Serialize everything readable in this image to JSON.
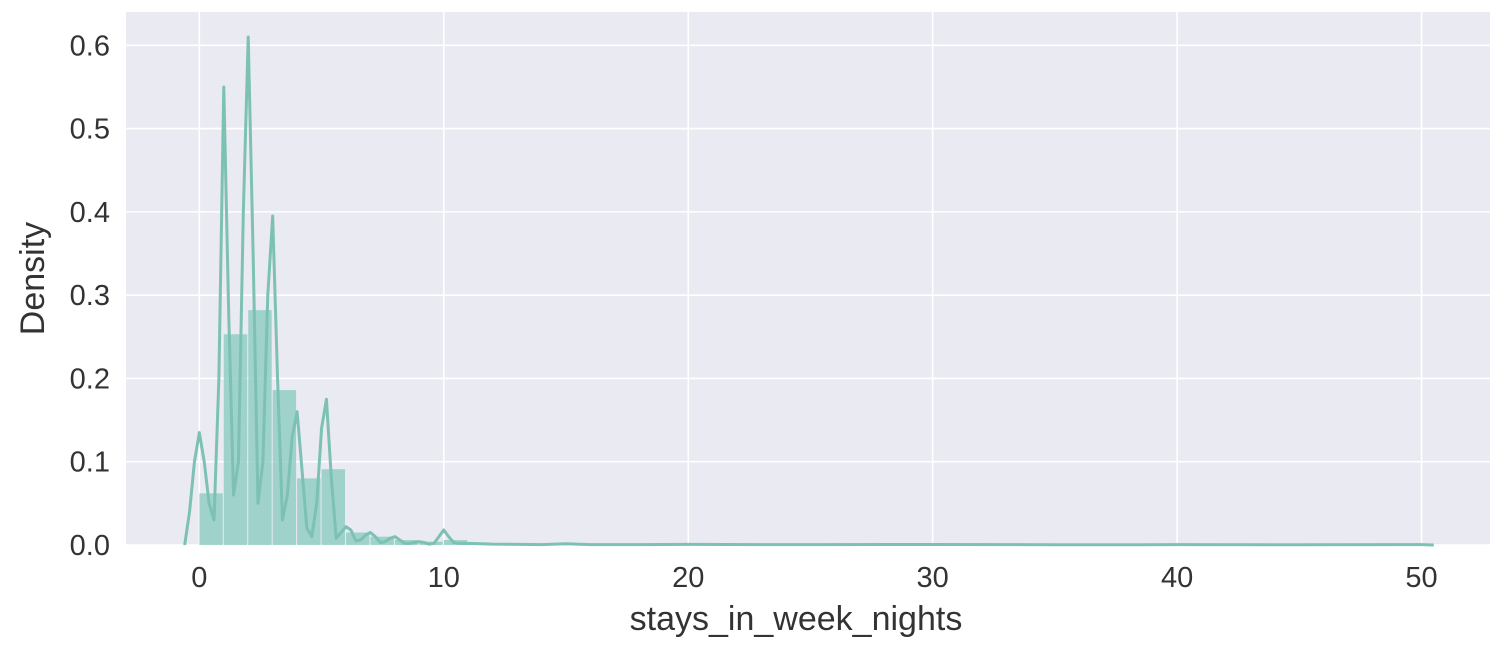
{
  "chart_data": {
    "type": "bar",
    "title": "",
    "xlabel": "stays_in_week_nights",
    "ylabel": "Density",
    "xlim": [
      -3.0,
      52.8
    ],
    "ylim": [
      0.0,
      0.64
    ],
    "x_ticks": [
      0,
      10,
      20,
      30,
      40,
      50
    ],
    "x_tick_labels": [
      "0",
      "10",
      "20",
      "30",
      "40",
      "50"
    ],
    "y_ticks": [
      0.0,
      0.1,
      0.2,
      0.3,
      0.4,
      0.5,
      0.6
    ],
    "y_tick_labels": [
      "0.0",
      "0.1",
      "0.2",
      "0.3",
      "0.4",
      "0.5",
      "0.6"
    ],
    "grid": true,
    "legend": "none",
    "colors": {
      "background": "#eaeaf2",
      "grid": "#ffffff",
      "histogram_fill": "#84c9bc",
      "kde_line": "#7dc1b4",
      "text": "#333333"
    },
    "series": [
      {
        "type": "histogram",
        "bin_width": 1.0,
        "bins": [
          {
            "x0": 0.0,
            "x1": 1.0,
            "density": 0.062
          },
          {
            "x0": 1.0,
            "x1": 2.0,
            "density": 0.253
          },
          {
            "x0": 2.0,
            "x1": 3.0,
            "density": 0.282
          },
          {
            "x0": 3.0,
            "x1": 4.0,
            "density": 0.186
          },
          {
            "x0": 4.0,
            "x1": 5.0,
            "density": 0.08
          },
          {
            "x0": 5.0,
            "x1": 6.0,
            "density": 0.091
          },
          {
            "x0": 6.0,
            "x1": 7.0,
            "density": 0.015
          },
          {
            "x0": 7.0,
            "x1": 8.0,
            "density": 0.01
          },
          {
            "x0": 8.0,
            "x1": 9.0,
            "density": 0.006
          },
          {
            "x0": 9.0,
            "x1": 10.0,
            "density": 0.004
          },
          {
            "x0": 10.0,
            "x1": 11.0,
            "density": 0.006
          },
          {
            "x0": 11.0,
            "x1": 12.0,
            "density": 0.001
          },
          {
            "x0": 12.0,
            "x1": 13.0,
            "density": 0.001
          },
          {
            "x0": 13.0,
            "x1": 14.0,
            "density": 0.0005
          },
          {
            "x0": 14.0,
            "x1": 15.0,
            "density": 0.0005
          },
          {
            "x0": 15.0,
            "x1": 16.0,
            "density": 0.0008
          }
        ]
      },
      {
        "type": "kde",
        "points": [
          [
            -0.6,
            0.0
          ],
          [
            -0.4,
            0.04
          ],
          [
            -0.2,
            0.1
          ],
          [
            0.0,
            0.135
          ],
          [
            0.2,
            0.1
          ],
          [
            0.4,
            0.05
          ],
          [
            0.6,
            0.03
          ],
          [
            0.8,
            0.2
          ],
          [
            1.0,
            0.55
          ],
          [
            1.2,
            0.28
          ],
          [
            1.4,
            0.06
          ],
          [
            1.6,
            0.1
          ],
          [
            1.8,
            0.4
          ],
          [
            2.0,
            0.61
          ],
          [
            2.2,
            0.35
          ],
          [
            2.4,
            0.05
          ],
          [
            2.6,
            0.1
          ],
          [
            2.8,
            0.3
          ],
          [
            3.0,
            0.395
          ],
          [
            3.2,
            0.2
          ],
          [
            3.4,
            0.03
          ],
          [
            3.6,
            0.06
          ],
          [
            3.8,
            0.13
          ],
          [
            4.0,
            0.16
          ],
          [
            4.2,
            0.09
          ],
          [
            4.4,
            0.02
          ],
          [
            4.6,
            0.01
          ],
          [
            4.8,
            0.05
          ],
          [
            5.0,
            0.14
          ],
          [
            5.2,
            0.175
          ],
          [
            5.4,
            0.08
          ],
          [
            5.6,
            0.008
          ],
          [
            5.8,
            0.015
          ],
          [
            6.0,
            0.022
          ],
          [
            6.2,
            0.018
          ],
          [
            6.4,
            0.005
          ],
          [
            6.6,
            0.006
          ],
          [
            6.8,
            0.012
          ],
          [
            7.0,
            0.015
          ],
          [
            7.2,
            0.01
          ],
          [
            7.4,
            0.003
          ],
          [
            7.6,
            0.004
          ],
          [
            7.8,
            0.008
          ],
          [
            8.0,
            0.01
          ],
          [
            8.2,
            0.006
          ],
          [
            8.4,
            0.002
          ],
          [
            8.6,
            0.002
          ],
          [
            8.8,
            0.003
          ],
          [
            9.0,
            0.004
          ],
          [
            9.2,
            0.003
          ],
          [
            9.4,
            0.001
          ],
          [
            9.6,
            0.002
          ],
          [
            9.8,
            0.01
          ],
          [
            10.0,
            0.018
          ],
          [
            10.2,
            0.01
          ],
          [
            10.4,
            0.003
          ],
          [
            10.6,
            0.002
          ],
          [
            11.0,
            0.002
          ],
          [
            12.0,
            0.001
          ],
          [
            14.0,
            0.0005
          ],
          [
            15.0,
            0.0015
          ],
          [
            16.0,
            0.0005
          ],
          [
            18.0,
            0.0005
          ],
          [
            20.0,
            0.0007
          ],
          [
            25.0,
            0.0004
          ],
          [
            30.0,
            0.0006
          ],
          [
            35.0,
            0.0003
          ],
          [
            40.0,
            0.0004
          ],
          [
            45.0,
            0.0003
          ],
          [
            50.0,
            0.0004
          ],
          [
            50.5,
            0.0
          ]
        ]
      }
    ]
  }
}
